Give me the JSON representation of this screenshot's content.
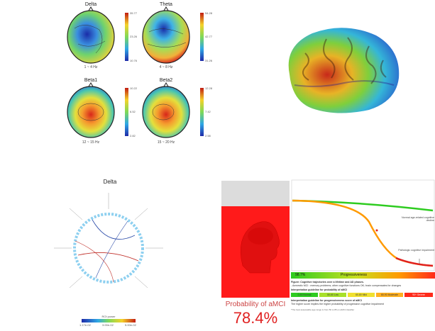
{
  "topomaps": [
    {
      "band": "Delta",
      "freq": "1 ~ 4 Hz",
      "max": "35.77",
      "mid": "23.26",
      "min": "10.76"
    },
    {
      "band": "Theta",
      "freq": "4 ~ 8 Hz",
      "max": "54.28",
      "mid": "42.77",
      "min": "31.26"
    },
    {
      "band": "Beta1",
      "freq": "12 ~ 15 Hz",
      "max": "10.22",
      "mid": "6.52",
      "min": "2.82"
    },
    {
      "band": "Beta2",
      "freq": "15 ~ 20 Hz",
      "max": "12.28",
      "mid": "7.42",
      "min": "2.58"
    }
  ],
  "connectivity": {
    "title": "Delta",
    "colorbar_label": "ROI power",
    "colorbar_ticks": [
      "1.17e-02",
      "3.00e-02",
      "5.00e-02"
    ]
  },
  "prediction": {
    "label": "Probability of aMCI",
    "value": "78.4%",
    "bar_left": "98.7%",
    "bar_right": "Progressiveness",
    "normal_label": "Normal age-related cognitive decline",
    "patho_label": "Pathologic cognitive impairment",
    "figure_caption": "Figure: Cognitive trajectories over a lifetime and AD phases.",
    "figure_note": "- Amnestic MCI : memory problems; other cognitive functions OK; brain compensates for changes",
    "guide_title_1": "Interpretation guideline for probability of aMCI",
    "guide_boxes": [
      "0-50 Normal",
      "50-60 Low",
      "60-80 Mild",
      "80-90 Moderate",
      "90+ Severe"
    ],
    "guide_title_2": "Interpretation guideline for progressiveness score of aMCI",
    "guide_text_2": "The higher score implies the higher probability of progressive cognitive impairment",
    "footnote": "*The best assessable age range is from 50 to 85 on aMCI classifier"
  },
  "colors": {
    "red": "#ff1a1a",
    "green": "#2ecc20",
    "orange": "#ff9a00"
  }
}
